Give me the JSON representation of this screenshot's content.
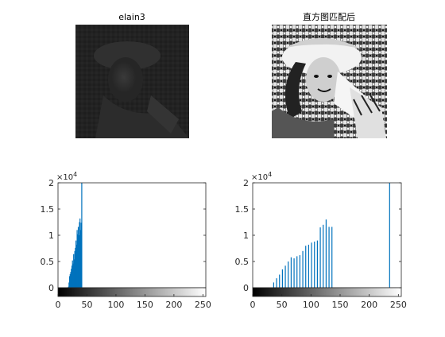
{
  "figure": {
    "image_panels": [
      {
        "title": "elain3",
        "description": "dark low-contrast grayscale portrait"
      },
      {
        "title": "直方图匹配后",
        "description": "high-contrast grayscale portrait after histogram matching"
      }
    ]
  },
  "chart_data": [
    {
      "type": "bar",
      "title": "",
      "xlabel": "",
      "ylabel": "",
      "y_multiplier_label": "×10^4",
      "xlim": [
        0,
        255
      ],
      "ylim": [
        0,
        20000
      ],
      "x_ticks": [
        0,
        50,
        100,
        150,
        200,
        250
      ],
      "y_ticks": [
        0,
        0.5,
        1,
        1.5,
        2
      ],
      "grid": false,
      "colorbar": "gray",
      "series": [
        {
          "color": "#0072BD",
          "x": [
            18,
            19,
            20,
            21,
            22,
            23,
            24,
            25,
            26,
            27,
            28,
            29,
            30,
            31,
            32,
            33,
            34,
            35,
            36,
            37,
            38,
            39,
            40,
            41
          ],
          "values": [
            200,
            1000,
            2200,
            2600,
            3000,
            3600,
            4200,
            5200,
            4600,
            6400,
            5400,
            7000,
            7600,
            9000,
            8200,
            11000,
            10200,
            11600,
            10000,
            12500,
            13200,
            11000,
            12400,
            20000
          ]
        }
      ]
    },
    {
      "type": "bar",
      "title": "",
      "xlabel": "",
      "ylabel": "",
      "y_multiplier_label": "×10^4",
      "xlim": [
        0,
        255
      ],
      "ylim": [
        0,
        20000
      ],
      "x_ticks": [
        0,
        50,
        100,
        150,
        200,
        250
      ],
      "y_ticks": [
        0,
        0.5,
        1,
        1.5,
        2
      ],
      "grid": false,
      "colorbar": "gray",
      "series": [
        {
          "color": "#0072BD",
          "x": [
            36,
            41,
            46,
            51,
            56,
            61,
            66,
            71,
            76,
            81,
            86,
            91,
            96,
            101,
            106,
            111,
            116,
            121,
            126,
            131,
            136,
            235
          ],
          "values": [
            1000,
            1800,
            2500,
            3500,
            4200,
            5000,
            5800,
            5600,
            6000,
            6200,
            7000,
            8000,
            8200,
            8600,
            8800,
            9000,
            11500,
            12000,
            13000,
            11600,
            11600,
            20000
          ]
        }
      ]
    }
  ]
}
